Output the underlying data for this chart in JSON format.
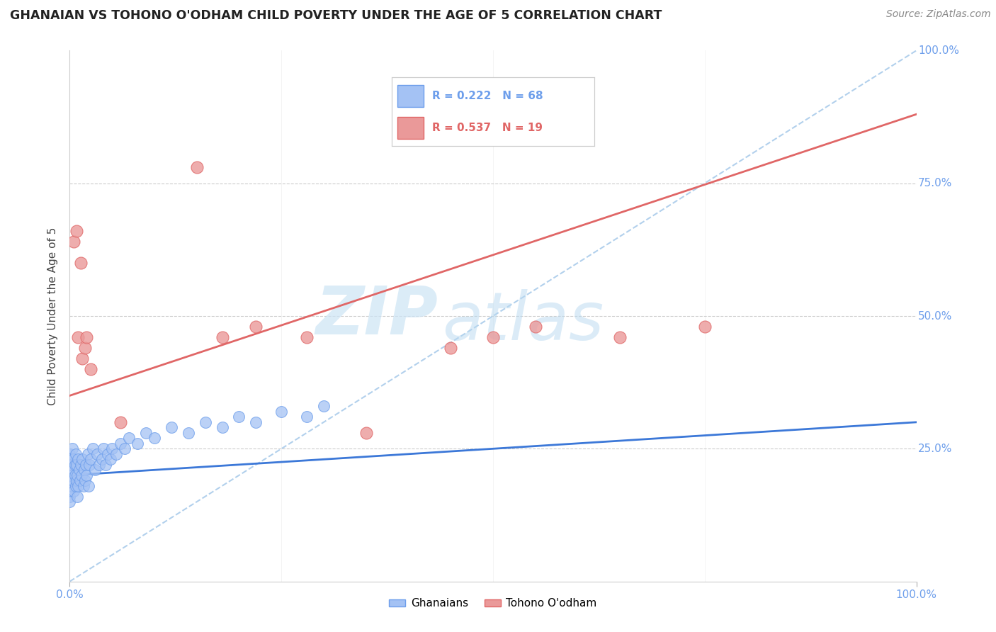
{
  "title": "GHANAIAN VS TOHONO O'ODHAM CHILD POVERTY UNDER THE AGE OF 5 CORRELATION CHART",
  "source": "Source: ZipAtlas.com",
  "ylabel": "Child Poverty Under the Age of 5",
  "xlim": [
    0,
    1
  ],
  "ylim": [
    0,
    1
  ],
  "R_blue": 0.222,
  "N_blue": 68,
  "R_pink": 0.537,
  "N_pink": 19,
  "blue_scatter_color": "#a4c2f4",
  "blue_scatter_edge": "#6d9eeb",
  "pink_scatter_color": "#ea9999",
  "pink_scatter_edge": "#e06666",
  "blue_line_color": "#3c78d8",
  "pink_line_color": "#e06666",
  "ref_line_color": "#999999",
  "legend_blue_label": "Ghanaians",
  "legend_pink_label": "Tohono O'odham",
  "watermark_zip": "ZIP",
  "watermark_atlas": "atlas",
  "background_color": "#ffffff",
  "grid_color": "#cccccc",
  "tick_color": "#6d9eeb",
  "blue_line_intercept": 0.2,
  "blue_line_slope": 0.1,
  "pink_line_intercept": 0.35,
  "pink_line_slope": 0.53,
  "ghanaian_x": [
    0.0,
    0.0,
    0.0,
    0.0,
    0.0,
    0.0,
    0.0,
    0.0,
    0.0,
    0.0,
    0.002,
    0.002,
    0.003,
    0.003,
    0.004,
    0.004,
    0.005,
    0.005,
    0.006,
    0.006,
    0.007,
    0.007,
    0.008,
    0.008,
    0.009,
    0.009,
    0.01,
    0.01,
    0.011,
    0.012,
    0.013,
    0.014,
    0.015,
    0.016,
    0.017,
    0.018,
    0.019,
    0.02,
    0.021,
    0.022,
    0.023,
    0.025,
    0.027,
    0.03,
    0.032,
    0.035,
    0.038,
    0.04,
    0.042,
    0.045,
    0.048,
    0.05,
    0.055,
    0.06,
    0.065,
    0.07,
    0.08,
    0.09,
    0.1,
    0.12,
    0.14,
    0.16,
    0.18,
    0.2,
    0.22,
    0.25,
    0.28,
    0.3
  ],
  "ghanaian_y": [
    0.18,
    0.2,
    0.22,
    0.16,
    0.24,
    0.19,
    0.21,
    0.17,
    0.23,
    0.15,
    0.2,
    0.22,
    0.18,
    0.25,
    0.19,
    0.23,
    0.21,
    0.17,
    0.22,
    0.2,
    0.18,
    0.24,
    0.19,
    0.22,
    0.2,
    0.16,
    0.23,
    0.18,
    0.21,
    0.19,
    0.22,
    0.2,
    0.23,
    0.18,
    0.21,
    0.19,
    0.22,
    0.2,
    0.24,
    0.18,
    0.22,
    0.23,
    0.25,
    0.21,
    0.24,
    0.22,
    0.23,
    0.25,
    0.22,
    0.24,
    0.23,
    0.25,
    0.24,
    0.26,
    0.25,
    0.27,
    0.26,
    0.28,
    0.27,
    0.29,
    0.28,
    0.3,
    0.29,
    0.31,
    0.3,
    0.32,
    0.31,
    0.33
  ],
  "tohono_x": [
    0.005,
    0.008,
    0.01,
    0.013,
    0.015,
    0.018,
    0.02,
    0.025,
    0.06,
    0.15,
    0.18,
    0.22,
    0.28,
    0.35,
    0.45,
    0.5,
    0.55,
    0.65,
    0.75
  ],
  "tohono_y": [
    0.64,
    0.66,
    0.46,
    0.6,
    0.42,
    0.44,
    0.46,
    0.4,
    0.3,
    0.78,
    0.46,
    0.48,
    0.46,
    0.28,
    0.44,
    0.46,
    0.48,
    0.46,
    0.48
  ]
}
